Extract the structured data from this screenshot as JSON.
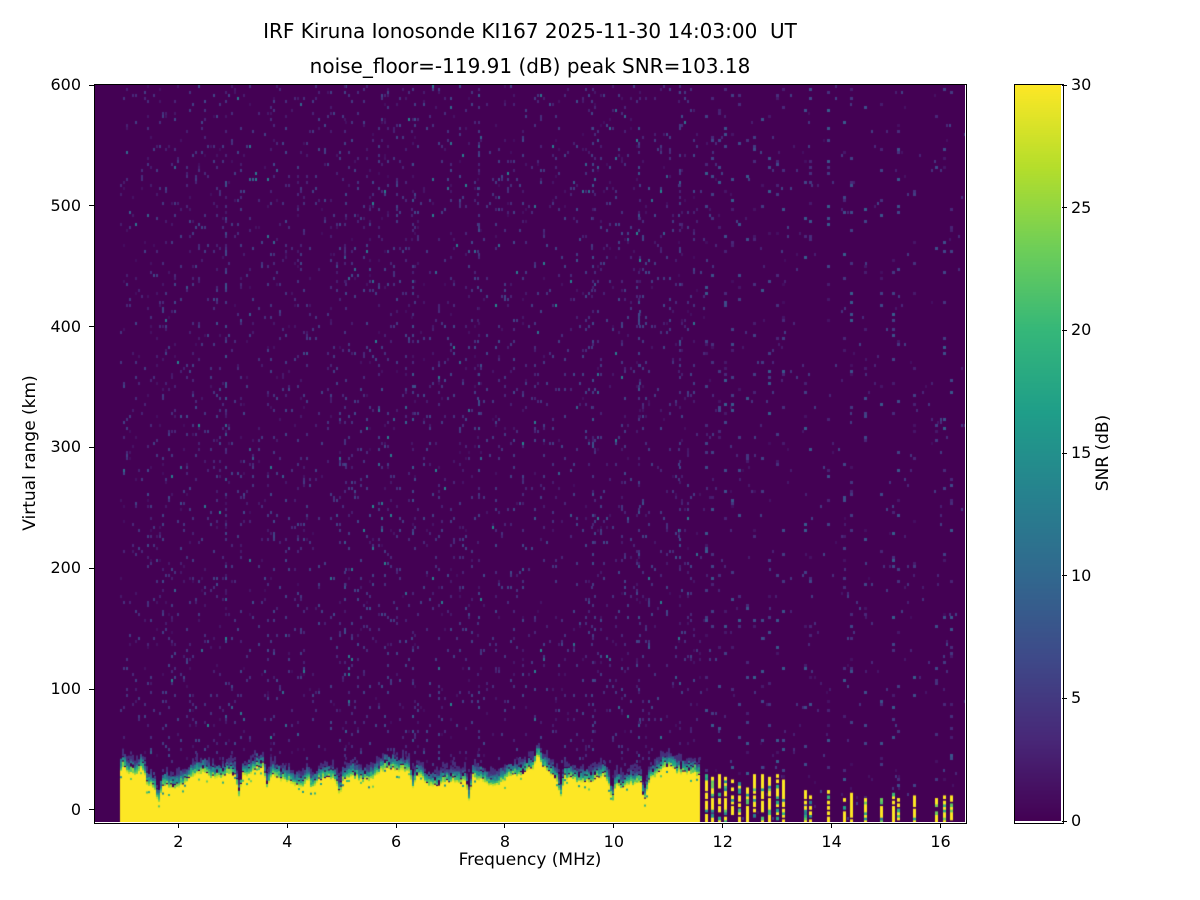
{
  "chart_data": {
    "type": "heatmap",
    "title_line1": "IRF Kiruna Ionosonde KI167 2025-11-30 14:03:00  UT",
    "title_line2": "noise_floor=-119.91 (dB) peak SNR=103.18",
    "station": "IRF Kiruna Ionosonde KI167",
    "timestamp_ut": "2025-11-30 14:03:00",
    "noise_floor_db": -119.91,
    "peak_snr_db": 103.18,
    "xlabel": "Frequency (MHz)",
    "ylabel": "Virtual range (km)",
    "xlim": [
      0.47,
      16.45
    ],
    "ylim": [
      -10,
      600
    ],
    "xticks": [
      2,
      4,
      6,
      8,
      10,
      12,
      14,
      16
    ],
    "yticks": [
      0,
      100,
      200,
      300,
      400,
      500,
      600
    ],
    "grid": false,
    "legend": "none",
    "colorbar": {
      "label": "SNR (dB)",
      "min": 0,
      "max": 30,
      "ticks": [
        0,
        5,
        10,
        15,
        20,
        25,
        30
      ],
      "colormap": "viridis",
      "colormap_stops": [
        "#440154",
        "#482878",
        "#3e4a89",
        "#31688e",
        "#26828e",
        "#1f9e89",
        "#35b779",
        "#6ece58",
        "#b5de2b",
        "#fde725"
      ]
    },
    "features": {
      "background_snr_db": 0,
      "data_freq_start_mhz": 0.93,
      "ground_clutter": {
        "freq_start_mhz": 0.93,
        "freq_end_mhz": 11.57,
        "top_km_mean": 30,
        "snr_db": 30,
        "dips_mhz": [
          1.62,
          3.1,
          3.62,
          4.95,
          6.3,
          7.32,
          9.0,
          9.95,
          10.55
        ],
        "bumps_mhz": [
          0.98,
          1.32,
          4.35,
          8.6
        ]
      },
      "noisy_columns_mhz": [
        2.85,
        5.05,
        6.3,
        7.5,
        9.6,
        10.45,
        11.2
      ],
      "interference_cluster_mhz": [
        11.67,
        11.79,
        11.91,
        12.03,
        12.15,
        12.28,
        12.42,
        12.56,
        12.7,
        12.84,
        12.97,
        13.08
      ],
      "interference_sparse_mhz": [
        13.5,
        13.58,
        13.92,
        14.2,
        14.33,
        14.6,
        14.88,
        15.1,
        15.2,
        15.5,
        15.9,
        16.05,
        16.18
      ]
    }
  }
}
